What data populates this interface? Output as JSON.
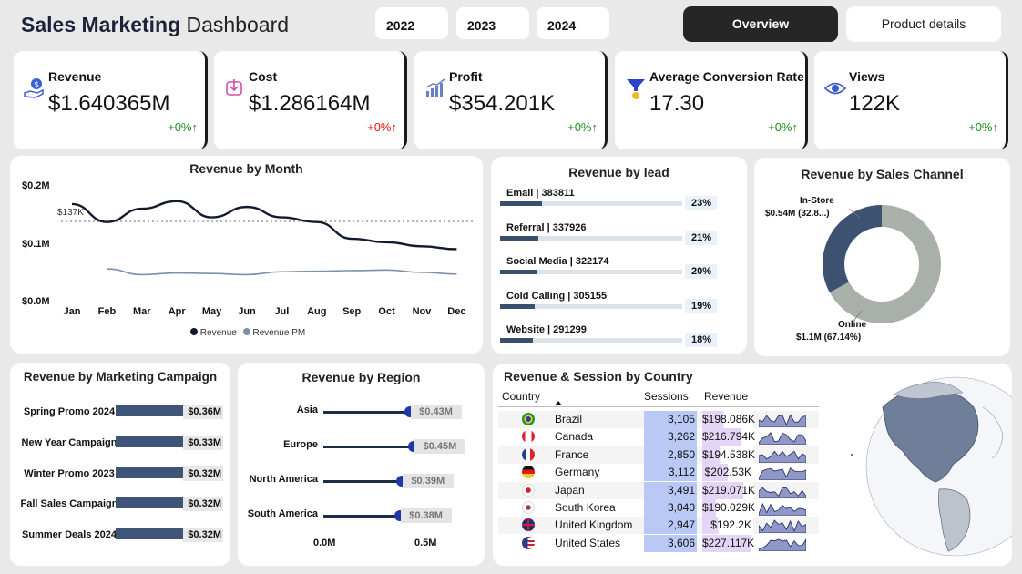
{
  "header": {
    "title_bold": "Sales Marketing",
    "title_light": "Dashboard",
    "years": [
      "2022",
      "2023",
      "2024"
    ],
    "tabs": {
      "overview": "Overview",
      "product": "Product details"
    }
  },
  "kpis": [
    {
      "label": "Revenue",
      "value": "$1.640365M",
      "change": "+0%↑",
      "change_color": "#1b8c1b",
      "icon": "money-hand-icon"
    },
    {
      "label": "Cost",
      "value": "$1.286164M",
      "change": "+0%↑",
      "change_color": "#e01818",
      "icon": "down-arrow-box-icon"
    },
    {
      "label": "Profit",
      "value": "$354.201K",
      "change": "+0%↑",
      "change_color": "#1b8c1b",
      "icon": "growth-chart-icon"
    },
    {
      "label": "Average Conversion Rate",
      "value": "17.30",
      "change": "+0%↑",
      "change_color": "#1b8c1b",
      "icon": "funnel-icon"
    },
    {
      "label": "Views",
      "value": "122K",
      "change": "+0%↑",
      "change_color": "#1b8c1b",
      "icon": "eye-icon"
    }
  ],
  "month_chart": {
    "title": "Revenue by Month",
    "y_ticks": [
      "$0.2M",
      "$0.1M",
      "$0.0M"
    ],
    "months": [
      "Jan",
      "Feb",
      "Mar",
      "Apr",
      "May",
      "Jun",
      "Jul",
      "Aug",
      "Sep",
      "Oct",
      "Nov",
      "Dec"
    ],
    "avg_label": "$137K",
    "legend": [
      "Revenue",
      "Revenue PM"
    ]
  },
  "lead_chart": {
    "title": "Revenue by lead",
    "items": [
      {
        "label": "Email | 383811",
        "pct": "23%",
        "fraction": 0.23
      },
      {
        "label": "Referral | 337926",
        "pct": "21%",
        "fraction": 0.21
      },
      {
        "label": "Social Media | 322174",
        "pct": "20%",
        "fraction": 0.2
      },
      {
        "label": "Cold Calling | 305155",
        "pct": "19%",
        "fraction": 0.19
      },
      {
        "label": "Website | 291299",
        "pct": "18%",
        "fraction": 0.18
      }
    ]
  },
  "channel_chart": {
    "title": "Revenue by Sales Channel",
    "instore_name": "In-Store",
    "instore_value": "$0.54M (32.8...)",
    "online_name": "Online",
    "online_value": "$1.1M (67.14%)"
  },
  "campaign_chart": {
    "title": "Revenue by Marketing Campaign",
    "items": [
      {
        "label": "Spring Promo 2024",
        "value": "$0.36M"
      },
      {
        "label": "New Year Campaign",
        "value": "$0.33M"
      },
      {
        "label": "Winter Promo 2023",
        "value": "$0.32M"
      },
      {
        "label": "Fall Sales Campaign",
        "value": "$0.32M"
      },
      {
        "label": "Summer Deals 2024",
        "value": "$0.32M"
      }
    ]
  },
  "region_chart": {
    "title": "Revenue by Region",
    "items": [
      {
        "label": "Asia",
        "value": "$0.43M"
      },
      {
        "label": "Europe",
        "value": "$0.45M"
      },
      {
        "label": "North America",
        "value": "$0.39M"
      },
      {
        "label": "South America",
        "value": "$0.38M"
      }
    ],
    "x_ticks": [
      "0.0M",
      "0.5M"
    ]
  },
  "country_table": {
    "title": "Revenue & Session by Country",
    "columns": [
      "Country",
      "Sessions",
      "Revenue"
    ],
    "rows": [
      {
        "country": "Brazil",
        "sessions": "3,105",
        "revenue": "$198.086K",
        "flag": "flag-brazil-icon"
      },
      {
        "country": "Canada",
        "sessions": "3,262",
        "revenue": "$216.794K",
        "flag": "flag-canada-icon"
      },
      {
        "country": "France",
        "sessions": "2,850",
        "revenue": "$194.538K",
        "flag": "flag-france-icon"
      },
      {
        "country": "Germany",
        "sessions": "3,112",
        "revenue": "$202.53K",
        "flag": "flag-germany-icon"
      },
      {
        "country": "Japan",
        "sessions": "3,491",
        "revenue": "$219.071K",
        "flag": "flag-japan-icon"
      },
      {
        "country": "South Korea",
        "sessions": "3,040",
        "revenue": "$190.029K",
        "flag": "flag-south-korea-icon"
      },
      {
        "country": "United Kingdom",
        "sessions": "2,947",
        "revenue": "$192.2K",
        "flag": "flag-uk-icon"
      },
      {
        "country": "United States",
        "sessions": "3,606",
        "revenue": "$227.117K",
        "flag": "flag-usa-icon"
      }
    ]
  },
  "chart_data": [
    {
      "type": "line",
      "title": "Revenue by Month",
      "categories": [
        "Jan",
        "Feb",
        "Mar",
        "Apr",
        "May",
        "Jun",
        "Jul",
        "Aug",
        "Sep",
        "Oct",
        "Nov",
        "Dec"
      ],
      "series": [
        {
          "name": "Revenue",
          "values": [
            167000,
            136000,
            159000,
            172000,
            144000,
            162000,
            144000,
            136000,
            107000,
            101000,
            94000,
            89000
          ]
        },
        {
          "name": "Revenue PM",
          "values": [
            null,
            55000,
            45000,
            48000,
            47000,
            45000,
            50000,
            51000,
            52000,
            53000,
            49000,
            46000
          ]
        }
      ],
      "reference_line": 137000,
      "ylim": [
        0,
        200000
      ],
      "legend": "bottom",
      "colors": [
        "#121a2e",
        "#7e8fac"
      ]
    },
    {
      "type": "bar",
      "title": "Revenue by lead",
      "categories": [
        "Email",
        "Referral",
        "Social Media",
        "Cold Calling",
        "Website"
      ],
      "values": [
        383811,
        337926,
        322174,
        305155,
        291299
      ]
    },
    {
      "type": "pie",
      "title": "Revenue by Sales Channel",
      "categories": [
        "In-Store",
        "Online"
      ],
      "values": [
        32.86,
        67.14
      ],
      "colors": [
        "#3d5170",
        "#a9b0aa"
      ]
    },
    {
      "type": "bar",
      "title": "Revenue by Marketing Campaign",
      "categories": [
        "Spring Promo 2024",
        "New Year Campaign",
        "Winter Promo 2023",
        "Fall Sales Campaign",
        "Summer Deals 2024"
      ],
      "values": [
        0.36,
        0.33,
        0.32,
        0.32,
        0.32
      ]
    },
    {
      "type": "scatter",
      "title": "Revenue by Region",
      "categories": [
        "Asia",
        "Europe",
        "North America",
        "South America"
      ],
      "values": [
        0.43,
        0.45,
        0.39,
        0.38
      ],
      "xlim": [
        0,
        0.5
      ]
    },
    {
      "type": "table",
      "title": "Revenue & Session by Country",
      "categories": [
        "Brazil",
        "Canada",
        "France",
        "Germany",
        "Japan",
        "South Korea",
        "United Kingdom",
        "United States"
      ],
      "series": [
        {
          "name": "Sessions",
          "values": [
            3105,
            3262,
            2850,
            3112,
            3491,
            3040,
            2947,
            3606
          ]
        },
        {
          "name": "Revenue",
          "values": [
            198086,
            216794,
            194538,
            202530,
            219071,
            190029,
            192200,
            227117
          ]
        }
      ]
    }
  ]
}
